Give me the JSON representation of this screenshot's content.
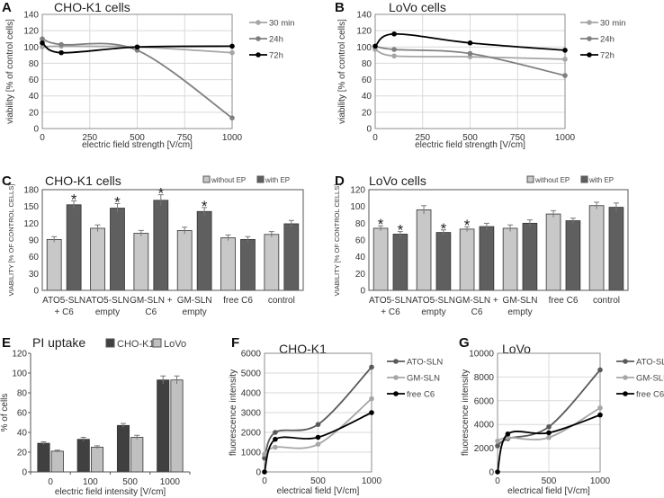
{
  "chart_data": [
    {
      "panel": "A",
      "type": "line",
      "title": "CHO-K1 cells",
      "xlabel": "electric field strength [V/cm]",
      "ylabel": "viability [% of control cells]",
      "xlim": [
        0,
        1000
      ],
      "ylim": [
        0,
        140
      ],
      "xticks": [
        "0",
        "250",
        "500",
        "750",
        "1000"
      ],
      "yticks": [
        "0",
        "20",
        "40",
        "60",
        "80",
        "100",
        "120",
        "140"
      ],
      "grid": true,
      "legend": "right",
      "x": [
        0,
        100,
        500,
        1000
      ],
      "series": [
        {
          "name": "30 min",
          "values": [
            100,
            101,
            100,
            93
          ],
          "color": "#a6a6a6"
        },
        {
          "name": "24h",
          "values": [
            110,
            103,
            96,
            13
          ],
          "color": "#7f7f7f"
        },
        {
          "name": "72h",
          "values": [
            105,
            93,
            100,
            101
          ],
          "color": "#000000"
        }
      ]
    },
    {
      "panel": "B",
      "type": "line",
      "title": "LoVo cells",
      "xlabel": "electric field strength [V/cm]",
      "ylabel": "viability [% of control cells]",
      "xlim": [
        0,
        1000
      ],
      "ylim": [
        0,
        140
      ],
      "xticks": [
        "0",
        "250",
        "500",
        "750",
        "1000"
      ],
      "yticks": [
        "0",
        "20",
        "40",
        "60",
        "80",
        "100",
        "120",
        "140"
      ],
      "grid": true,
      "legend": "right",
      "x": [
        0,
        100,
        500,
        1000
      ],
      "series": [
        {
          "name": "30 min",
          "values": [
            97,
            89,
            88,
            85
          ],
          "color": "#a6a6a6"
        },
        {
          "name": "24h",
          "values": [
            101,
            97,
            92,
            65
          ],
          "color": "#7f7f7f"
        },
        {
          "name": "72h",
          "values": [
            101,
            116,
            105,
            96
          ],
          "color": "#000000"
        }
      ]
    },
    {
      "panel": "C",
      "type": "bar",
      "title": "CHO-K1 cells",
      "ylabel": "VIABILITY [% OF CONTROL CELLS]",
      "ylim": [
        0,
        180
      ],
      "yticks": [
        "0",
        "30",
        "60",
        "90",
        "120",
        "150",
        "180"
      ],
      "grid": false,
      "legend": "top-right",
      "categories": [
        [
          "ATO5-SLN",
          "+ C6"
        ],
        [
          "ATO5-SLN",
          "empty"
        ],
        [
          "GM-SLN +",
          "C6"
        ],
        [
          "GM-SLN",
          "empty"
        ],
        [
          "free C6"
        ],
        [
          "control"
        ]
      ],
      "series": [
        {
          "name": "without EP",
          "values": [
            91,
            111,
            102,
            107,
            94,
            100
          ],
          "errors": [
            5,
            6,
            5,
            6,
            5,
            5
          ],
          "significant": [
            false,
            false,
            false,
            false,
            false,
            false
          ],
          "color": "#c8c8c8"
        },
        {
          "name": "with EP",
          "values": [
            153,
            147,
            161,
            141,
            91,
            119
          ],
          "errors": [
            7,
            8,
            10,
            7,
            5,
            6
          ],
          "significant": [
            true,
            true,
            true,
            true,
            false,
            false
          ],
          "color": "#5f5f5f"
        }
      ],
      "marker": "*"
    },
    {
      "panel": "D",
      "type": "bar",
      "title": "LoVo cells",
      "ylabel": "VIABILITY [% OF CONTROL CELLS]",
      "ylim": [
        0,
        120
      ],
      "yticks": [
        "0",
        "20",
        "40",
        "60",
        "80",
        "100",
        "120"
      ],
      "grid": false,
      "legend": "top-right",
      "categories": [
        [
          "ATO5-SLN",
          "+ C6"
        ],
        [
          "ATO5-SLN",
          "empty"
        ],
        [
          "GM-SLN +",
          "C6"
        ],
        [
          "GM-SLN",
          "empty"
        ],
        [
          "free C6"
        ],
        [
          "control"
        ]
      ],
      "series": [
        {
          "name": "without EP",
          "values": [
            74,
            96,
            73,
            74,
            91,
            101
          ],
          "errors": [
            3,
            5,
            3,
            4,
            4,
            4
          ],
          "significant": [
            true,
            false,
            true,
            false,
            false,
            false
          ],
          "color": "#c8c8c8"
        },
        {
          "name": "with EP",
          "values": [
            67,
            69,
            76,
            80,
            83,
            99
          ],
          "errors": [
            3,
            3,
            4,
            4,
            3,
            5
          ],
          "significant": [
            true,
            true,
            false,
            false,
            false,
            false
          ],
          "color": "#5f5f5f"
        }
      ],
      "marker": "*"
    },
    {
      "panel": "E",
      "type": "bar",
      "title": "PI uptake",
      "xlabel": "electric field intensity [V/cm]",
      "ylabel": "% of cells",
      "ylim": [
        0,
        120
      ],
      "yticks": [
        "0",
        "20",
        "40",
        "60",
        "80",
        "100",
        "120"
      ],
      "grid": false,
      "legend": "top",
      "categories": [
        [
          "0"
        ],
        [
          "100"
        ],
        [
          "500"
        ],
        [
          "1000"
        ]
      ],
      "series": [
        {
          "name": "CHO-K1",
          "values": [
            29,
            33,
            47,
            93
          ],
          "errors": [
            1.5,
            2,
            2,
            4
          ],
          "color": "#404040"
        },
        {
          "name": "LoVo",
          "values": [
            21,
            25,
            35,
            93
          ],
          "errors": [
            1,
            1.5,
            2,
            4
          ],
          "color": "#c0c0c0"
        }
      ]
    },
    {
      "panel": "F",
      "type": "line",
      "title": "CHO-K1",
      "xlabel": "electrical field [V/cm]",
      "ylabel": "fluorescence intensity",
      "xlim": [
        0,
        1000
      ],
      "ylim": [
        0,
        6000
      ],
      "xticks": [
        "0",
        "500",
        "1000"
      ],
      "yticks": [
        "0",
        "1000",
        "2000",
        "3000",
        "4000",
        "5000",
        "6000"
      ],
      "grid": true,
      "legend": "right",
      "x": [
        0,
        100,
        500,
        1000
      ],
      "series": [
        {
          "name": "ATO-SLN",
          "values": [
            700,
            2000,
            2400,
            5300
          ],
          "color": "#595959"
        },
        {
          "name": "GM-SLN",
          "values": [
            900,
            1250,
            1400,
            3700
          ],
          "color": "#a6a6a6"
        },
        {
          "name": "free C6",
          "values": [
            0,
            1650,
            1750,
            3000
          ],
          "color": "#000000"
        }
      ]
    },
    {
      "panel": "G",
      "type": "line",
      "title": "LoVo",
      "xlabel": "electrical field [V/cm]",
      "ylabel": "fluorescence intensity",
      "xlim": [
        0,
        1000
      ],
      "ylim": [
        0,
        10000
      ],
      "xticks": [
        "0",
        "500",
        "1000"
      ],
      "yticks": [
        "0",
        "2000",
        "4000",
        "6000",
        "8000",
        "10000"
      ],
      "grid": true,
      "legend": "right",
      "x": [
        0,
        100,
        500,
        1000
      ],
      "series": [
        {
          "name": "ATO-SLN",
          "values": [
            2200,
            2800,
            3800,
            8600
          ],
          "color": "#595959"
        },
        {
          "name": "GM-SLN",
          "values": [
            2600,
            2900,
            2900,
            5400
          ],
          "color": "#a6a6a6"
        },
        {
          "name": "free C6",
          "values": [
            0,
            3200,
            3300,
            4800
          ],
          "color": "#000000"
        }
      ]
    }
  ]
}
